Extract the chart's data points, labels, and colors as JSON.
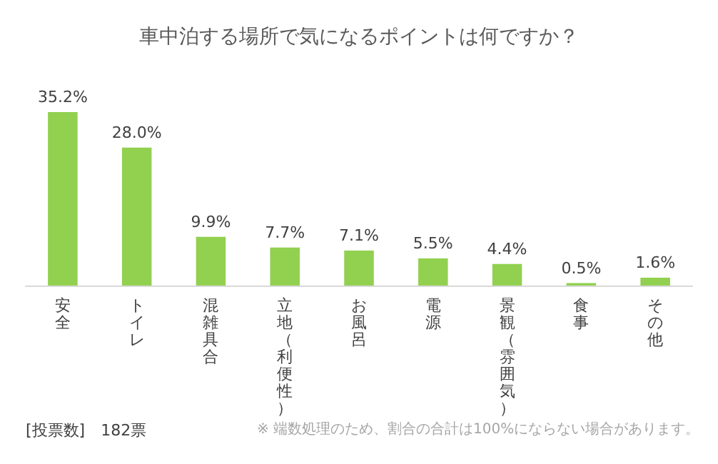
{
  "chart_data": {
    "type": "bar",
    "title": "車中泊する場所で気になるポイントは何ですか？",
    "categories": [
      "安全",
      "トイレ",
      "混雑具合",
      "立地（利便性）",
      "お風呂",
      "電源",
      "景観（雰囲気）",
      "食事",
      "その他"
    ],
    "values": [
      35.2,
      28.0,
      9.9,
      7.7,
      7.1,
      5.5,
      4.4,
      0.5,
      1.6
    ],
    "value_labels": [
      "35.2%",
      "28.0%",
      "9.9%",
      "7.7%",
      "7.1%",
      "5.5%",
      "4.4%",
      "0.5%",
      "1.6%"
    ],
    "color": "#92d050",
    "tick_labels": "x",
    "annotations": [
      "[投票数]　182票",
      "※ 端数処理のため、割合の合計は100%にならない場合があります。"
    ]
  }
}
